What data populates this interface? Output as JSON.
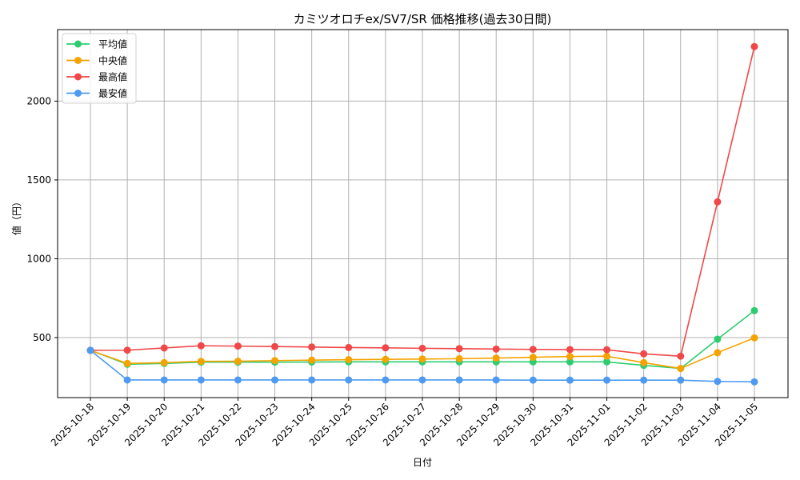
{
  "chart_data": {
    "type": "line",
    "title": "カミツオロチex/SV7/SR 価格推移(過去30日間)",
    "xlabel": "日付",
    "ylabel": "値（円）",
    "ylim": [
      110,
      2440
    ],
    "yticks": [
      500,
      1000,
      1500,
      2000
    ],
    "grid": true,
    "legend_position": "upper left",
    "categories": [
      "2025-10-18",
      "2025-10-19",
      "2025-10-20",
      "2025-10-21",
      "2025-10-22",
      "2025-10-23",
      "2025-10-24",
      "2025-10-25",
      "2025-10-26",
      "2025-10-27",
      "2025-10-28",
      "2025-10-29",
      "2025-10-30",
      "2025-10-31",
      "2025-11-01",
      "2025-11-02",
      "2025-11-03",
      "2025-11-04",
      "2025-11-05"
    ],
    "series": [
      {
        "name": "平均値",
        "color": "#2ecc71",
        "values": [
          419,
          331,
          336,
          344,
          344,
          344,
          345,
          346,
          346,
          346,
          346,
          346,
          346,
          346,
          346,
          324,
          304,
          490,
          671
        ]
      },
      {
        "name": "中央値",
        "color": "#f5a300",
        "values": [
          419,
          336,
          341,
          349,
          350,
          354,
          357,
          360,
          362,
          364,
          366,
          370,
          375,
          380,
          382,
          341,
          304,
          404,
          498
        ]
      },
      {
        "name": "最高値",
        "color": "#f04848",
        "values": [
          419,
          420,
          434,
          448,
          446,
          443,
          440,
          437,
          435,
          432,
          430,
          427,
          425,
          424,
          423,
          397,
          382,
          1361,
          2346
        ]
      },
      {
        "name": "最安値",
        "color": "#4d9af0",
        "values": [
          419,
          231,
          231,
          231,
          231,
          231,
          231,
          231,
          231,
          231,
          231,
          231,
          230,
          230,
          230,
          230,
          230,
          222,
          219
        ]
      }
    ]
  }
}
